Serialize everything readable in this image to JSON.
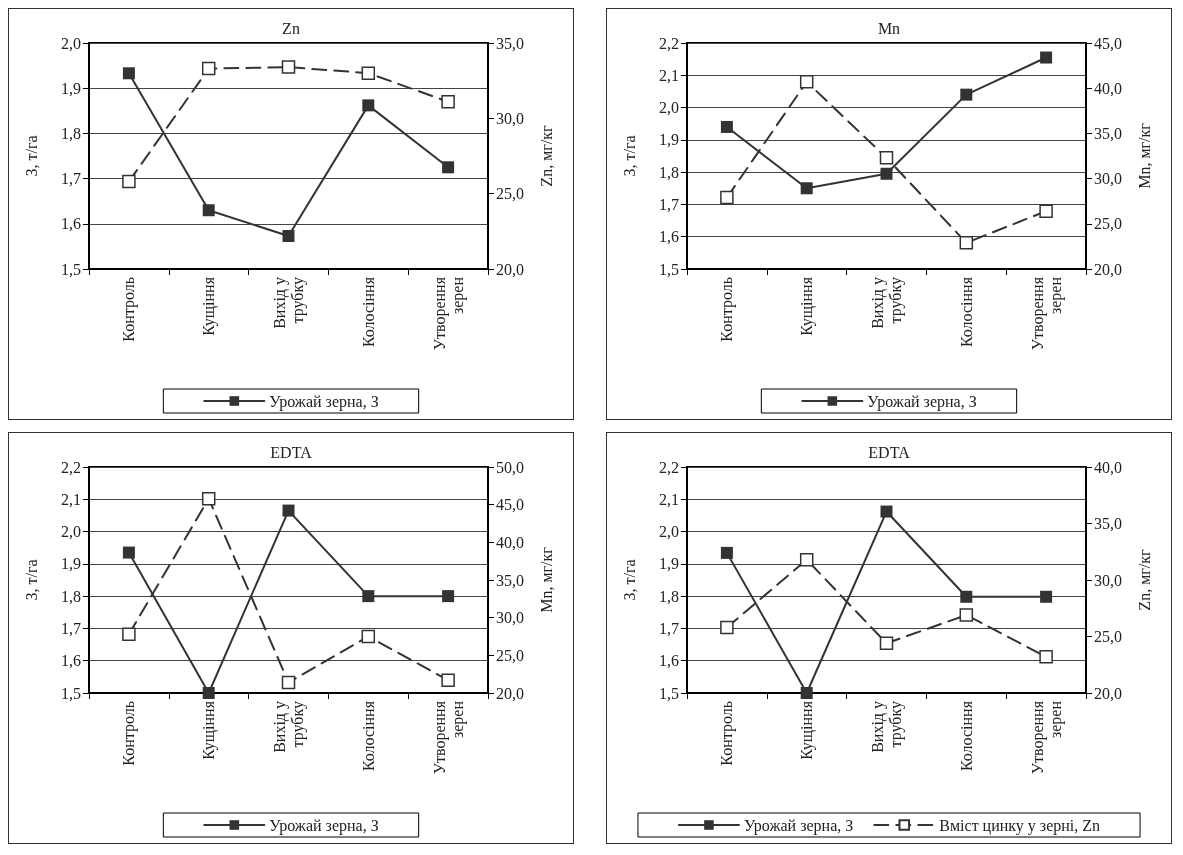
{
  "chart_data": [
    {
      "type": "line",
      "title": "Zn",
      "ylabel": "З, т/га",
      "y2label": "Zn, мг/кг",
      "categories": [
        "Контроль",
        "Кущіння",
        "Вихід у трубку",
        "Колосіння",
        "Утворення зерен"
      ],
      "series": [
        {
          "name": "Урожай зерна, З",
          "color": "#333333",
          "line_style": "solid",
          "values": [
            1.933,
            1.63,
            1.573,
            1.862,
            1.725
          ]
        },
        {
          "color": "#333333",
          "line_style": "dashed",
          "axis": "y2",
          "values": [
            25.8,
            33.3,
            33.4,
            33.0,
            31.1
          ]
        }
      ],
      "ylim": [
        1.5,
        2.0
      ],
      "yticks": [
        {
          "value": 1.5,
          "label": "1,5"
        },
        {
          "value": 1.6,
          "label": "1,6"
        },
        {
          "value": 1.7,
          "label": "1,7"
        },
        {
          "value": 1.8,
          "label": "1,8"
        },
        {
          "value": 1.9,
          "label": "1,9"
        },
        {
          "value": 2.0,
          "label": "2,0"
        }
      ],
      "y2lim": [
        20,
        35
      ],
      "y2ticks": [
        {
          "value": 20,
          "label": "20,0"
        },
        {
          "value": 25,
          "label": "25,0"
        },
        {
          "value": 30,
          "label": "30,0"
        },
        {
          "value": 35,
          "label": "35,0"
        }
      ],
      "grid": "y",
      "legend": "bottom",
      "marker": "square"
    },
    {
      "type": "line",
      "title": "Mn",
      "ylabel": "З, т/га",
      "y2label": "Mn, мг/кг",
      "categories": [
        "Контроль",
        "Кущіння",
        "Вихід у трубку",
        "Колосіння",
        "Утворення зерен"
      ],
      "series": [
        {
          "name": "Урожай зерна, З",
          "color": "#333333",
          "line_style": "solid",
          "values": [
            1.94,
            1.75,
            1.795,
            2.04,
            2.155
          ]
        },
        {
          "color": "#333333",
          "line_style": "dashed",
          "axis": "y2",
          "values": [
            27.9,
            40.7,
            32.3,
            22.9,
            26.4
          ]
        }
      ],
      "ylim": [
        1.5,
        2.2
      ],
      "yticks": [
        {
          "value": 1.5,
          "label": "1,5"
        },
        {
          "value": 1.6,
          "label": "1,6"
        },
        {
          "value": 1.7,
          "label": "1,7"
        },
        {
          "value": 1.8,
          "label": "1,8"
        },
        {
          "value": 1.9,
          "label": "1,9"
        },
        {
          "value": 2.0,
          "label": "2,0"
        },
        {
          "value": 2.1,
          "label": "2,1"
        },
        {
          "value": 2.2,
          "label": "2,2"
        }
      ],
      "y2lim": [
        20,
        45
      ],
      "y2ticks": [
        {
          "value": 20,
          "label": "20,0"
        },
        {
          "value": 25,
          "label": "25,0"
        },
        {
          "value": 30,
          "label": "30,0"
        },
        {
          "value": 35,
          "label": "35,0"
        },
        {
          "value": 40,
          "label": "40,0"
        },
        {
          "value": 45,
          "label": "45,0"
        }
      ],
      "grid": "y",
      "legend": "bottom",
      "marker": "square"
    },
    {
      "type": "line",
      "title": "EDTA",
      "ylabel": "З, т/га",
      "y2label": "Mn, мг/кг",
      "categories": [
        "Контроль",
        "Кущіння",
        "Вихід у трубку",
        "Колосіння",
        "Утворення зерен"
      ],
      "series": [
        {
          "name": "Урожай зерна, З",
          "color": "#333333",
          "line_style": "solid",
          "values": [
            1.935,
            1.5,
            2.065,
            1.8,
            1.8
          ]
        },
        {
          "color": "#333333",
          "line_style": "dashed",
          "axis": "y2",
          "values": [
            27.8,
            45.8,
            21.4,
            27.5,
            21.7
          ]
        }
      ],
      "ylim": [
        1.5,
        2.2
      ],
      "yticks": [
        {
          "value": 1.5,
          "label": "1,5"
        },
        {
          "value": 1.6,
          "label": "1,6"
        },
        {
          "value": 1.7,
          "label": "1,7"
        },
        {
          "value": 1.8,
          "label": "1,8"
        },
        {
          "value": 1.9,
          "label": "1,9"
        },
        {
          "value": 2.0,
          "label": "2,0"
        },
        {
          "value": 2.1,
          "label": "2,1"
        },
        {
          "value": 2.2,
          "label": "2,2"
        }
      ],
      "y2lim": [
        20,
        50
      ],
      "y2ticks": [
        {
          "value": 20,
          "label": "20,0"
        },
        {
          "value": 25,
          "label": "25,0"
        },
        {
          "value": 30,
          "label": "30,0"
        },
        {
          "value": 35,
          "label": "35,0"
        },
        {
          "value": 40,
          "label": "40,0"
        },
        {
          "value": 45,
          "label": "45,0"
        },
        {
          "value": 50,
          "label": "50,0"
        }
      ],
      "grid": "y",
      "legend": "bottom",
      "marker": "square"
    },
    {
      "type": "line",
      "title": "EDTA",
      "ylabel": "З, т/га",
      "y2label": "Zn, мг/кг",
      "categories": [
        "Контроль",
        "Кущіння",
        "Вихід у трубку",
        "Колосіння",
        "Утворення зерен"
      ],
      "series": [
        {
          "name": "Урожай зерна, З",
          "color": "#333333",
          "line_style": "solid",
          "values": [
            1.934,
            1.5,
            2.062,
            1.798,
            1.798
          ]
        },
        {
          "name": "Вміст цинку у зерні, Zn",
          "color": "#333333",
          "line_style": "dashed",
          "axis": "y2",
          "values": [
            25.8,
            31.8,
            24.4,
            26.9,
            23.2
          ]
        }
      ],
      "ylim": [
        1.5,
        2.2
      ],
      "yticks": [
        {
          "value": 1.5,
          "label": "1,5"
        },
        {
          "value": 1.6,
          "label": "1,6"
        },
        {
          "value": 1.7,
          "label": "1,7"
        },
        {
          "value": 1.8,
          "label": "1,8"
        },
        {
          "value": 1.9,
          "label": "1,9"
        },
        {
          "value": 2.0,
          "label": "2,0"
        },
        {
          "value": 2.1,
          "label": "2,1"
        },
        {
          "value": 2.2,
          "label": "2,2"
        }
      ],
      "y2lim": [
        20,
        40
      ],
      "y2ticks": [
        {
          "value": 20,
          "label": "20,0"
        },
        {
          "value": 25,
          "label": "25,0"
        },
        {
          "value": 30,
          "label": "30,0"
        },
        {
          "value": 35,
          "label": "35,0"
        },
        {
          "value": 40,
          "label": "40,0"
        }
      ],
      "grid": "y",
      "legend": "bottom",
      "marker": "square"
    }
  ]
}
